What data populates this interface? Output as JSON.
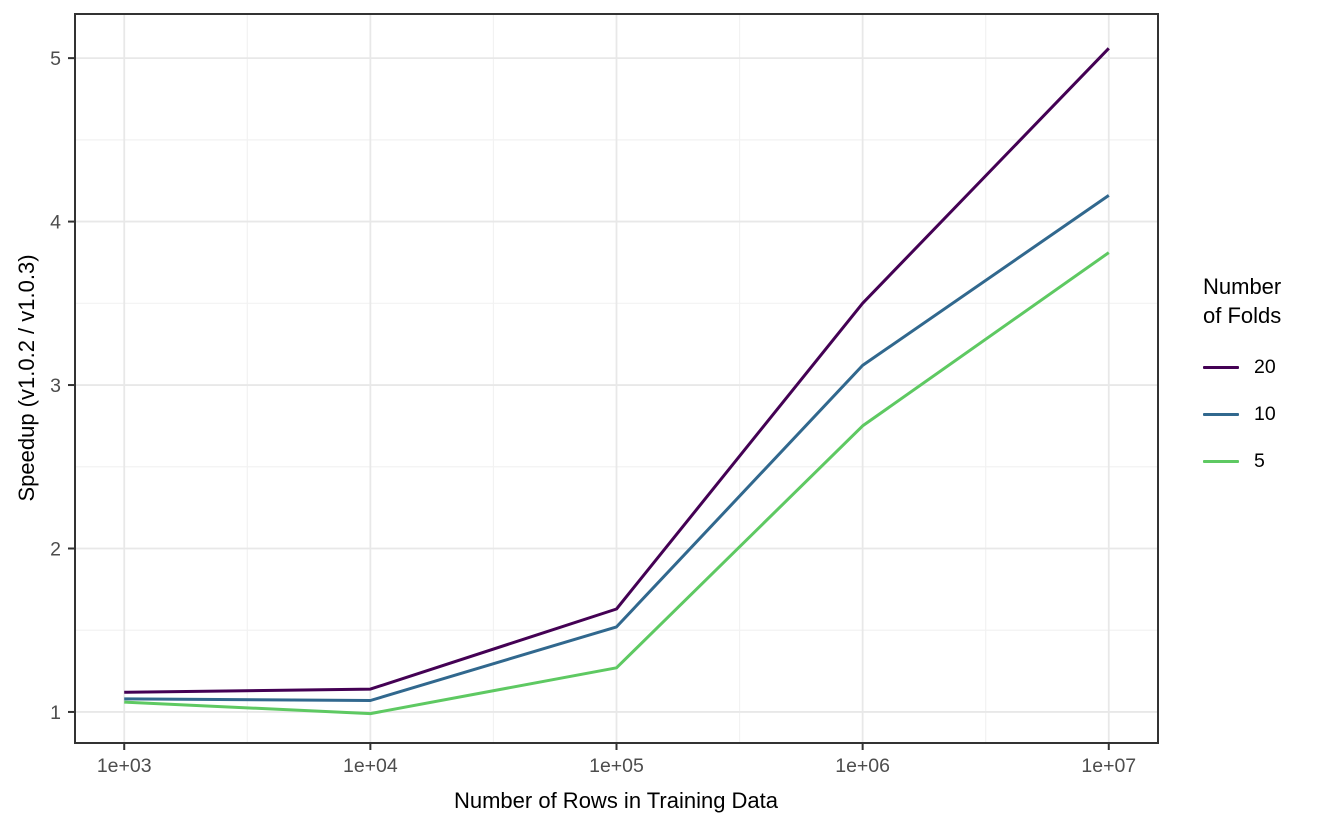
{
  "chart_data": {
    "type": "line",
    "xlabel": "Number of Rows in Training Data",
    "ylabel": "Speedup (v1.0.2 / v1.0.3)",
    "x_scale": "log10",
    "x": [
      1000,
      10000,
      100000,
      1000000,
      10000000
    ],
    "x_tick_labels": [
      "1e+03",
      "1e+04",
      "1e+05",
      "1e+06",
      "1e+07"
    ],
    "y_ticks": [
      1,
      2,
      3,
      4,
      5
    ],
    "y_tick_labels": [
      "1",
      "2",
      "3",
      "4",
      "5"
    ],
    "xlim_log10": [
      2.8,
      7.2
    ],
    "ylim": [
      0.81,
      5.27
    ],
    "grid": "major+minor",
    "legend_position": "right",
    "legend_title_lines": [
      "Number",
      "of Folds"
    ],
    "series": [
      {
        "name": "20",
        "color": "#440154",
        "values": [
          1.12,
          1.14,
          1.63,
          3.5,
          5.06
        ]
      },
      {
        "name": "10",
        "color": "#31688E",
        "values": [
          1.08,
          1.07,
          1.52,
          3.12,
          4.16
        ]
      },
      {
        "name": "5",
        "color": "#5EC962",
        "values": [
          1.06,
          0.99,
          1.27,
          2.75,
          3.81
        ]
      }
    ]
  },
  "style": {
    "background": "#FFFFFF",
    "panel_border": "#333333",
    "grid_major": "#E8E8E8",
    "grid_minor": "#F2F2F2",
    "tick_color": "#333333",
    "tick_label_color": "#4D4D4D",
    "axis_title_color": "#000000",
    "legend_text_color": "#000000"
  }
}
